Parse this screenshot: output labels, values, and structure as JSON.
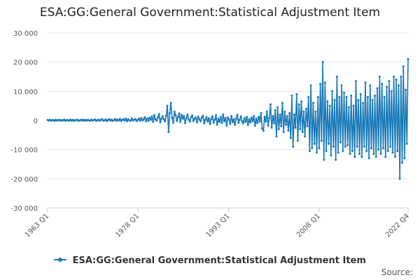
{
  "chart_data": {
    "type": "line",
    "title": "ESA:GG:General Government:Statistical Adjustment Item",
    "xlabel": "",
    "ylabel": "",
    "x_start": "1963 Q1",
    "x_end": "2022 Q4",
    "x_ticks": [
      "1963 Q1",
      "1978 Q1",
      "1993 Q1",
      "2008 Q1",
      "2022 Q4"
    ],
    "y_ticks": [
      30000,
      20000,
      10000,
      0,
      -10000,
      -20000,
      -30000
    ],
    "y_tick_labels": [
      "30 000",
      "20 000",
      "10 000",
      "0",
      "-10 000",
      "-20 000",
      "-30 000"
    ],
    "ylim": [
      -30000,
      30000
    ],
    "grid": "horizontal",
    "legend_position": "bottom",
    "series": [
      {
        "name": "ESA:GG:General Government:Statistical Adjustment Item",
        "color": "#1a7ab8",
        "values": [
          150,
          -50,
          220,
          -100,
          80,
          130,
          -180,
          250,
          -80,
          60,
          200,
          -120,
          90,
          -40,
          280,
          -150,
          120,
          70,
          -90,
          230,
          -60,
          170,
          -200,
          100,
          40,
          260,
          -130,
          -20,
          190,
          -70,
          310,
          -110,
          150,
          -90,
          220,
          30,
          -160,
          270,
          -40,
          110,
          330,
          -170,
          60,
          240,
          -120,
          180,
          380,
          -90,
          20,
          290,
          -200,
          140,
          420,
          -60,
          250,
          -150,
          90,
          480,
          -110,
          310,
          -30,
          520,
          -180,
          200,
          400,
          -90,
          600,
          -240,
          350,
          50,
          -130,
          700,
          -60,
          280,
          450,
          -200,
          160,
          560,
          -100,
          800,
          -40,
          380,
          1100,
          -300,
          650,
          -150,
          900,
          200,
          1400,
          -500,
          1800,
          350,
          -100,
          1000,
          2200,
          -700,
          600,
          1400,
          400,
          -300,
          1600,
          5000,
          -4000,
          2500,
          6000,
          900,
          -800,
          3000,
          1800,
          -200,
          1200,
          2400,
          -500,
          1900,
          600,
          1500,
          -900,
          800,
          2000,
          300,
          -400,
          1100,
          1700,
          -200,
          600,
          1000,
          -700,
          1300,
          400,
          -300,
          900,
          1600,
          -1000,
          200,
          1100,
          -400,
          700,
          -1200,
          500,
          1400,
          -800,
          300,
          1800,
          -1500,
          600,
          -500,
          1200,
          -900,
          2000,
          -300,
          800,
          -1800,
          1000,
          300,
          -1200,
          1500,
          -600,
          400,
          -1500,
          600,
          1900,
          -800,
          200,
          1400,
          -300,
          -1000,
          800,
          -500,
          1200,
          -1600,
          400,
          -700,
          1000,
          -300,
          1500,
          -1800,
          600,
          -900,
          1200,
          -400,
          2500,
          -2800,
          -3500,
          1200,
          -400,
          3000,
          -1800,
          800,
          5500,
          -2500,
          1500,
          -1000,
          3500,
          -5500,
          4500,
          -3000,
          2000,
          -2000,
          6000,
          -4000,
          3000,
          -1500,
          1500,
          -3500,
          2500,
          -6000,
          8500,
          -9000,
          2000,
          -2500,
          9000,
          -7000,
          5500,
          -3000,
          6500,
          -4000,
          3000,
          -5500,
          4000,
          -2000,
          8000,
          -10500,
          12000,
          -9500,
          6000,
          -8000,
          3000,
          -11000,
          8000,
          -9500,
          12500,
          -7000,
          20000,
          -13500,
          13000,
          -10500,
          6500,
          -8000,
          5000,
          -12000,
          10000,
          -9000,
          7000,
          -13500,
          15000,
          -11000,
          8000,
          -7500,
          12000,
          -10500,
          9500,
          -9000,
          8000,
          -8500,
          4500,
          -11500,
          8500,
          -10500,
          5000,
          -12500,
          13500,
          -9000,
          7000,
          -11500,
          9000,
          -12500,
          6000,
          -9000,
          13000,
          -10500,
          8000,
          -13000,
          12000,
          -9500,
          7000,
          -11500,
          8500,
          -12500,
          11000,
          -10000,
          15000,
          -11500,
          12500,
          -9500,
          8000,
          -12500,
          11500,
          -10500,
          13500,
          -9000,
          10000,
          -11000,
          15000,
          -12500,
          14000,
          -10500,
          12000,
          -20000,
          15000,
          -14500,
          18500,
          -13000,
          10500,
          -8000,
          21000
        ]
      }
    ],
    "source_label": "Source:"
  }
}
